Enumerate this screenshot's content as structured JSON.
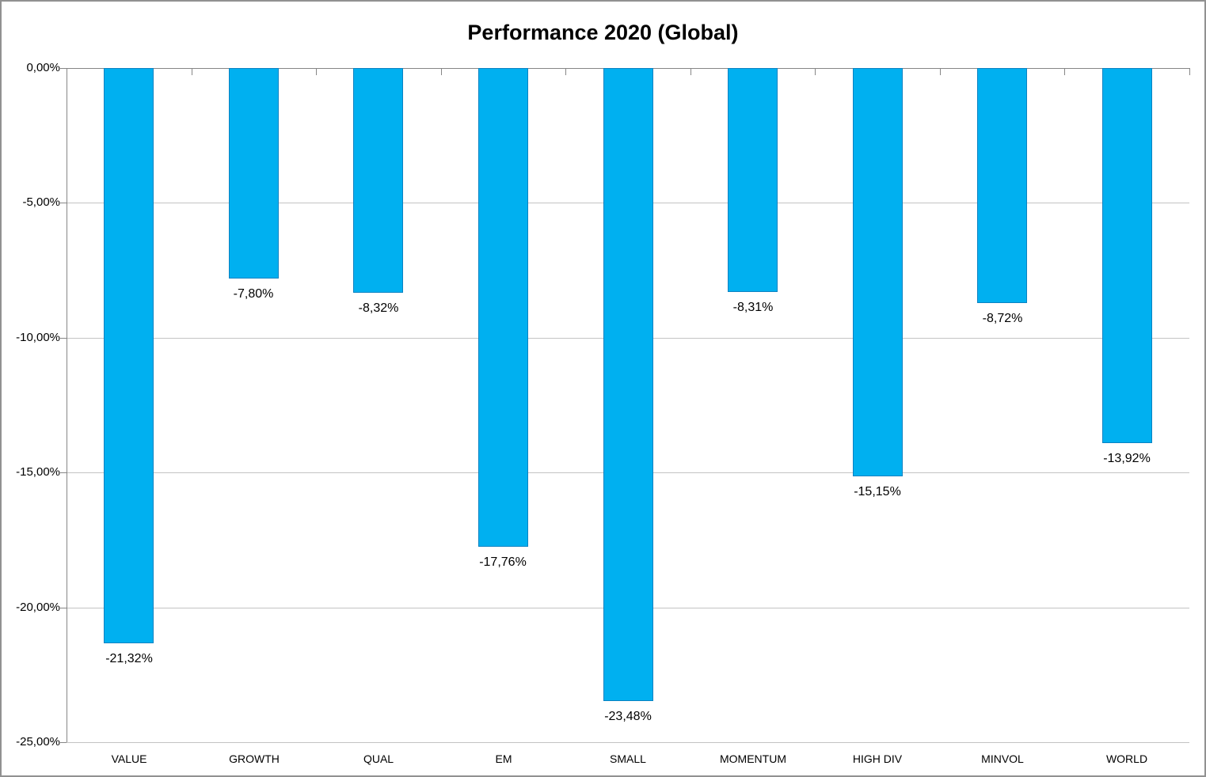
{
  "window": {
    "background": "#FFFFFF",
    "frame_border_color": "#919191"
  },
  "chart_data": {
    "type": "bar",
    "title": "Performance 2020 (Global)",
    "categories": [
      "VALUE",
      "GROWTH",
      "QUAL",
      "EM",
      "SMALL",
      "MOMENTUM",
      "HIGH DIV",
      "MINVOL",
      "WORLD"
    ],
    "values": [
      -21.32,
      -7.8,
      -8.32,
      -17.76,
      -23.48,
      -8.31,
      -15.15,
      -8.72,
      -13.92
    ],
    "data_labels": [
      "-21,32%",
      "-7,80%",
      "-8,32%",
      "-17,76%",
      "-23,48%",
      "-8,31%",
      "-15,15%",
      "-8,72%",
      "-13,92%"
    ],
    "xlabel": "",
    "ylabel": "",
    "y_axis": {
      "min": -25,
      "max": 0,
      "step": 5,
      "tick_labels": [
        "0,00%",
        "-5,00%",
        "-10,00%",
        "-15,00%",
        "-20,00%",
        "-25,00%"
      ]
    },
    "grid": true,
    "legend": "none",
    "colors": {
      "bar_fill": "#00B0F0",
      "bar_border": "#0A82C2",
      "gridline": "#C3C3C3",
      "axis_line": "#868686",
      "label_text": "#000000"
    }
  }
}
